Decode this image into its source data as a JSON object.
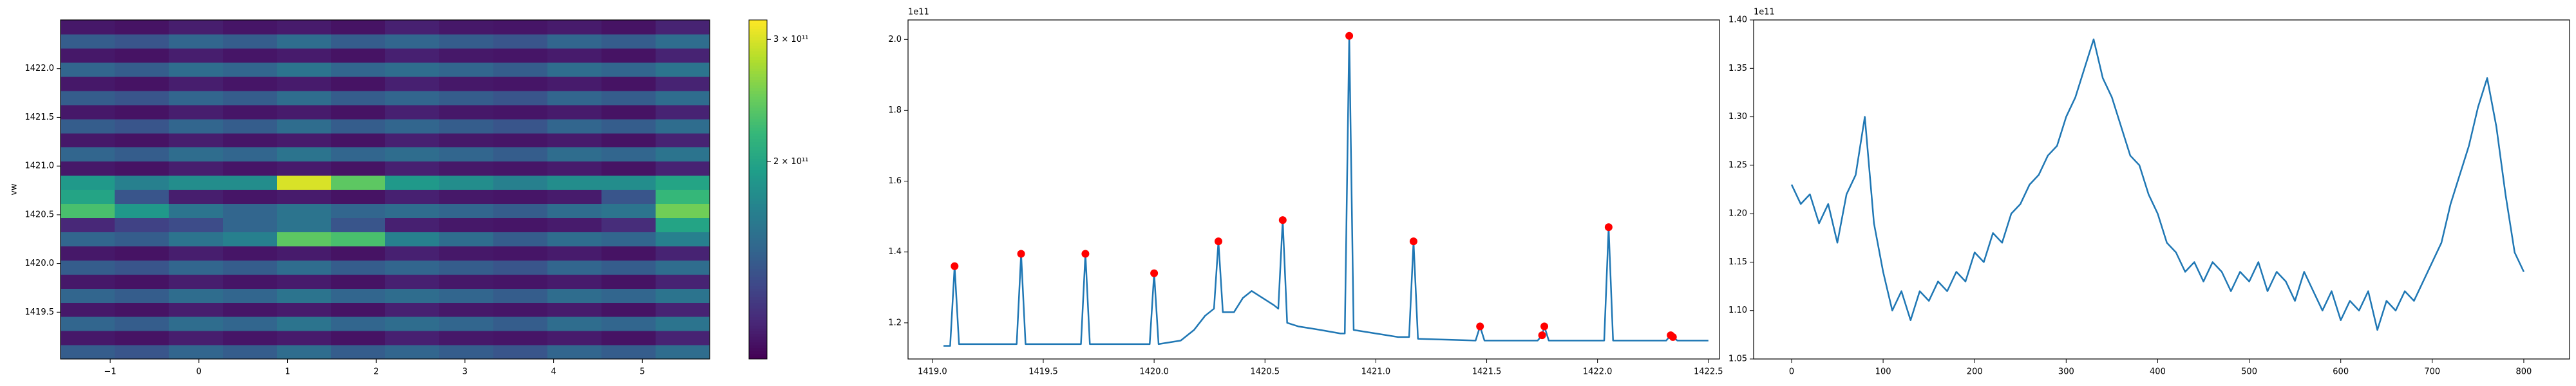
{
  "chart_data": [
    {
      "type": "heatmap",
      "ylabel": "vw",
      "colormap": "viridis",
      "zscale": "log",
      "xlim": [
        -1.56,
        5.76
      ],
      "ylim": [
        1419.02,
        1422.5
      ],
      "xticks": [
        {
          "value": -1,
          "label": "−1"
        },
        0,
        1,
        2,
        3,
        4,
        5
      ],
      "yticks": [
        1419.5,
        {
          "value": 1420,
          "label": "1420.0"
        },
        1420.5,
        {
          "value": 1421,
          "label": "1421.0"
        },
        1421.5,
        {
          "value": 1422,
          "label": "1422.0"
        }
      ],
      "zlim": [
        104000000000.0,
        320000000000.0
      ],
      "zticks": [
        {
          "value": 200000000000.0,
          "label": "2 × 10¹¹"
        },
        {
          "value": 300000000000.0,
          "label": "3 × 10¹¹"
        }
      ],
      "z": [
        [
          145000000000.0,
          140000000000.0,
          150000000000.0,
          145000000000.0,
          155000000000.0,
          145000000000.0,
          150000000000.0,
          145000000000.0,
          140000000000.0,
          150000000000.0,
          145000000000.0,
          155000000000.0
        ],
        [
          112000000000.0,
          110000000000.0,
          114000000000.0,
          111000000000.0,
          113000000000.0,
          110000000000.0,
          115000000000.0,
          112000000000.0,
          111000000000.0,
          113000000000.0,
          110000000000.0,
          116000000000.0
        ],
        [
          150000000000.0,
          145000000000.0,
          155000000000.0,
          150000000000.0,
          160000000000.0,
          150000000000.0,
          155000000000.0,
          150000000000.0,
          145000000000.0,
          155000000000.0,
          150000000000.0,
          160000000000.0
        ],
        [
          112000000000.0,
          110000000000.0,
          114000000000.0,
          111000000000.0,
          113000000000.0,
          110000000000.0,
          115000000000.0,
          112000000000.0,
          111000000000.0,
          113000000000.0,
          110000000000.0,
          116000000000.0
        ],
        [
          150000000000.0,
          145000000000.0,
          155000000000.0,
          150000000000.0,
          160000000000.0,
          150000000000.0,
          155000000000.0,
          150000000000.0,
          145000000000.0,
          155000000000.0,
          150000000000.0,
          160000000000.0
        ],
        [
          112000000000.0,
          110000000000.0,
          114000000000.0,
          111000000000.0,
          113000000000.0,
          110000000000.0,
          115000000000.0,
          112000000000.0,
          111000000000.0,
          113000000000.0,
          110000000000.0,
          116000000000.0
        ],
        [
          145000000000.0,
          140000000000.0,
          150000000000.0,
          145000000000.0,
          155000000000.0,
          145000000000.0,
          150000000000.0,
          145000000000.0,
          140000000000.0,
          150000000000.0,
          145000000000.0,
          155000000000.0
        ],
        [
          112000000000.0,
          110000000000.0,
          114000000000.0,
          111000000000.0,
          113000000000.0,
          110000000000.0,
          115000000000.0,
          112000000000.0,
          111000000000.0,
          113000000000.0,
          110000000000.0,
          116000000000.0
        ],
        [
          150000000000.0,
          145000000000.0,
          160000000000.0,
          170000000000.0,
          240000000000.0,
          230000000000.0,
          170000000000.0,
          155000000000.0,
          145000000000.0,
          155000000000.0,
          150000000000.0,
          170000000000.0
        ],
        [
          118000000000.0,
          130000000000.0,
          135000000000.0,
          150000000000.0,
          160000000000.0,
          140000000000.0,
          115000000000.0,
          112000000000.0,
          111000000000.0,
          113000000000.0,
          120000000000.0,
          200000000000.0
        ],
        [
          230000000000.0,
          190000000000.0,
          160000000000.0,
          150000000000.0,
          160000000000.0,
          150000000000.0,
          155000000000.0,
          150000000000.0,
          145000000000.0,
          155000000000.0,
          160000000000.0,
          250000000000.0
        ],
        [
          200000000000.0,
          140000000000.0,
          114000000000.0,
          111000000000.0,
          113000000000.0,
          110000000000.0,
          115000000000.0,
          112000000000.0,
          111000000000.0,
          113000000000.0,
          140000000000.0,
          220000000000.0
        ],
        [
          190000000000.0,
          170000000000.0,
          180000000000.0,
          180000000000.0,
          300000000000.0,
          240000000000.0,
          190000000000.0,
          180000000000.0,
          170000000000.0,
          180000000000.0,
          180000000000.0,
          200000000000.0
        ],
        [
          112000000000.0,
          110000000000.0,
          114000000000.0,
          111000000000.0,
          113000000000.0,
          110000000000.0,
          115000000000.0,
          112000000000.0,
          111000000000.0,
          113000000000.0,
          110000000000.0,
          116000000000.0
        ],
        [
          150000000000.0,
          145000000000.0,
          155000000000.0,
          150000000000.0,
          160000000000.0,
          150000000000.0,
          155000000000.0,
          150000000000.0,
          145000000000.0,
          155000000000.0,
          150000000000.0,
          160000000000.0
        ],
        [
          112000000000.0,
          110000000000.0,
          114000000000.0,
          111000000000.0,
          113000000000.0,
          110000000000.0,
          115000000000.0,
          112000000000.0,
          111000000000.0,
          113000000000.0,
          110000000000.0,
          116000000000.0
        ],
        [
          145000000000.0,
          140000000000.0,
          150000000000.0,
          145000000000.0,
          155000000000.0,
          145000000000.0,
          150000000000.0,
          145000000000.0,
          140000000000.0,
          150000000000.0,
          145000000000.0,
          155000000000.0
        ],
        [
          112000000000.0,
          110000000000.0,
          114000000000.0,
          111000000000.0,
          113000000000.0,
          110000000000.0,
          115000000000.0,
          112000000000.0,
          111000000000.0,
          113000000000.0,
          110000000000.0,
          116000000000.0
        ],
        [
          145000000000.0,
          140000000000.0,
          150000000000.0,
          145000000000.0,
          155000000000.0,
          145000000000.0,
          150000000000.0,
          145000000000.0,
          140000000000.0,
          150000000000.0,
          145000000000.0,
          155000000000.0
        ],
        [
          112000000000.0,
          110000000000.0,
          114000000000.0,
          111000000000.0,
          113000000000.0,
          110000000000.0,
          115000000000.0,
          112000000000.0,
          111000000000.0,
          113000000000.0,
          110000000000.0,
          116000000000.0
        ],
        [
          150000000000.0,
          145000000000.0,
          155000000000.0,
          150000000000.0,
          160000000000.0,
          150000000000.0,
          155000000000.0,
          150000000000.0,
          145000000000.0,
          155000000000.0,
          150000000000.0,
          160000000000.0
        ],
        [
          112000000000.0,
          110000000000.0,
          114000000000.0,
          111000000000.0,
          113000000000.0,
          110000000000.0,
          115000000000.0,
          112000000000.0,
          111000000000.0,
          113000000000.0,
          110000000000.0,
          116000000000.0
        ],
        [
          145000000000.0,
          140000000000.0,
          150000000000.0,
          145000000000.0,
          155000000000.0,
          145000000000.0,
          150000000000.0,
          145000000000.0,
          140000000000.0,
          150000000000.0,
          145000000000.0,
          155000000000.0
        ],
        [
          112000000000.0,
          110000000000.0,
          114000000000.0,
          111000000000.0,
          113000000000.0,
          110000000000.0,
          115000000000.0,
          112000000000.0,
          111000000000.0,
          113000000000.0,
          110000000000.0,
          116000000000.0
        ]
      ]
    },
    {
      "type": "line",
      "y_offset_text": "1e11",
      "xlim": [
        1418.89,
        1422.55
      ],
      "ylim": [
        109800000000.0,
        205500000000.0
      ],
      "xticks": [
        {
          "value": 1419,
          "label": "1419.0"
        },
        1419.5,
        {
          "value": 1420,
          "label": "1420.0"
        },
        1420.5,
        {
          "value": 1421,
          "label": "1421.0"
        },
        1421.5,
        {
          "value": 1422,
          "label": "1422.0"
        },
        1422.5
      ],
      "yticks": [
        {
          "value": 120000000000.0,
          "label": "1.2"
        },
        {
          "value": 140000000000.0,
          "label": "1.4"
        },
        {
          "value": 160000000000.0,
          "label": "1.6"
        },
        {
          "value": 180000000000.0,
          "label": "1.8"
        },
        {
          "value": 200000000000.0,
          "label": "2.0"
        }
      ],
      "series": [
        {
          "color": "#1f77b4",
          "x": [
            1419.05,
            1419.08,
            1419.1,
            1419.12,
            1419.38,
            1419.4,
            1419.42,
            1419.67,
            1419.69,
            1419.71,
            1419.98,
            1420.0,
            1420.02,
            1420.12,
            1420.18,
            1420.23,
            1420.27,
            1420.29,
            1420.31,
            1420.36,
            1420.4,
            1420.44,
            1420.49,
            1420.54,
            1420.56,
            1420.58,
            1420.6,
            1420.65,
            1420.75,
            1420.84,
            1420.86,
            1420.88,
            1420.9,
            1421.0,
            1421.1,
            1421.15,
            1421.17,
            1421.19,
            1421.45,
            1421.47,
            1421.49,
            1421.73,
            1421.75,
            1421.76,
            1421.78,
            1422.03,
            1422.05,
            1422.07,
            1422.31,
            1422.33,
            1422.34,
            1422.36,
            1422.5
          ],
          "values": [
            113500000000.0,
            113500000000.0,
            136000000000.0,
            114000000000.0,
            114000000000.0,
            139500000000.0,
            114000000000.0,
            114000000000.0,
            139500000000.0,
            114000000000.0,
            114000000000.0,
            134000000000.0,
            114000000000.0,
            115000000000.0,
            118000000000.0,
            122000000000.0,
            124000000000.0,
            143000000000.0,
            123000000000.0,
            123000000000.0,
            127000000000.0,
            129000000000.0,
            127000000000.0,
            125000000000.0,
            124000000000.0,
            149000000000.0,
            120000000000.0,
            119000000000.0,
            118000000000.0,
            117000000000.0,
            117000000000.0,
            201000000000.0,
            118000000000.0,
            117000000000.0,
            116000000000.0,
            116000000000.0,
            143000000000.0,
            115500000000.0,
            115000000000.0,
            119000000000.0,
            115000000000.0,
            115000000000.0,
            116500000000.0,
            119000000000.0,
            115000000000.0,
            115000000000.0,
            147000000000.0,
            115000000000.0,
            115000000000.0,
            116500000000.0,
            116000000000.0,
            115000000000.0,
            115000000000.0
          ]
        },
        {
          "type": "scatter",
          "color": "red",
          "x": [
            1419.1,
            1419.4,
            1419.69,
            1420.0,
            1420.29,
            1420.58,
            1420.88,
            1421.17,
            1421.47,
            1421.75,
            1421.76,
            1422.05,
            1422.33,
            1422.34
          ],
          "values": [
            136000000000.0,
            139500000000.0,
            139500000000.0,
            134000000000.0,
            143000000000.0,
            149000000000.0,
            201000000000.0,
            143000000000.0,
            119000000000.0,
            116500000000.0,
            119000000000.0,
            147000000000.0,
            116500000000.0,
            116000000000.0
          ]
        }
      ]
    },
    {
      "type": "line",
      "y_offset_text": "1e11",
      "xlim": [
        -41.5,
        850
      ],
      "ylim": [
        105000000000.0,
        140000000000.0
      ],
      "xticks": [
        0,
        100,
        200,
        300,
        400,
        500,
        600,
        700,
        800
      ],
      "yticks": [
        {
          "value": 105000000000.0,
          "label": "1.05"
        },
        {
          "value": 110000000000.0,
          "label": "1.10"
        },
        {
          "value": 115000000000.0,
          "label": "1.15"
        },
        {
          "value": 120000000000.0,
          "label": "1.20"
        },
        {
          "value": 125000000000.0,
          "label": "1.25"
        },
        {
          "value": 130000000000.0,
          "label": "1.30"
        },
        {
          "value": 135000000000.0,
          "label": "1.35"
        },
        {
          "value": 140000000000.0,
          "label": "1.40"
        }
      ],
      "series": [
        {
          "color": "#1f77b4",
          "x": [
            0,
            10,
            20,
            30,
            40,
            50,
            60,
            70,
            80,
            90,
            100,
            110,
            120,
            130,
            140,
            150,
            160,
            170,
            180,
            190,
            200,
            210,
            220,
            230,
            240,
            250,
            260,
            270,
            280,
            290,
            300,
            310,
            320,
            330,
            340,
            350,
            360,
            370,
            380,
            390,
            400,
            410,
            420,
            430,
            440,
            450,
            460,
            470,
            480,
            490,
            500,
            510,
            520,
            530,
            540,
            550,
            560,
            570,
            580,
            590,
            600,
            610,
            620,
            630,
            640,
            650,
            660,
            670,
            680,
            690,
            700,
            710,
            720,
            730,
            740,
            750,
            760,
            770,
            780,
            790,
            800
          ],
          "values": [
            123000000000.0,
            121000000000.0,
            122000000000.0,
            119000000000.0,
            121000000000.0,
            117000000000.0,
            122000000000.0,
            124000000000.0,
            130000000000.0,
            119000000000.0,
            114000000000.0,
            110000000000.0,
            112000000000.0,
            109000000000.0,
            112000000000.0,
            111000000000.0,
            113000000000.0,
            112000000000.0,
            114000000000.0,
            113000000000.0,
            116000000000.0,
            115000000000.0,
            118000000000.0,
            117000000000.0,
            120000000000.0,
            121000000000.0,
            123000000000.0,
            124000000000.0,
            126000000000.0,
            127000000000.0,
            130000000000.0,
            132000000000.0,
            135000000000.0,
            138000000000.0,
            134000000000.0,
            132000000000.0,
            129000000000.0,
            126000000000.0,
            125000000000.0,
            122000000000.0,
            120000000000.0,
            117000000000.0,
            116000000000.0,
            114000000000.0,
            115000000000.0,
            113000000000.0,
            115000000000.0,
            114000000000.0,
            112000000000.0,
            114000000000.0,
            113000000000.0,
            115000000000.0,
            112000000000.0,
            114000000000.0,
            113000000000.0,
            111000000000.0,
            114000000000.0,
            112000000000.0,
            110000000000.0,
            112000000000.0,
            109000000000.0,
            111000000000.0,
            110000000000.0,
            112000000000.0,
            108000000000.0,
            111000000000.0,
            110000000000.0,
            112000000000.0,
            111000000000.0,
            113000000000.0,
            115000000000.0,
            117000000000.0,
            121000000000.0,
            124000000000.0,
            127000000000.0,
            131000000000.0,
            134000000000.0,
            129000000000.0,
            122000000000.0,
            116000000000.0,
            114000000000.0
          ]
        }
      ]
    }
  ]
}
